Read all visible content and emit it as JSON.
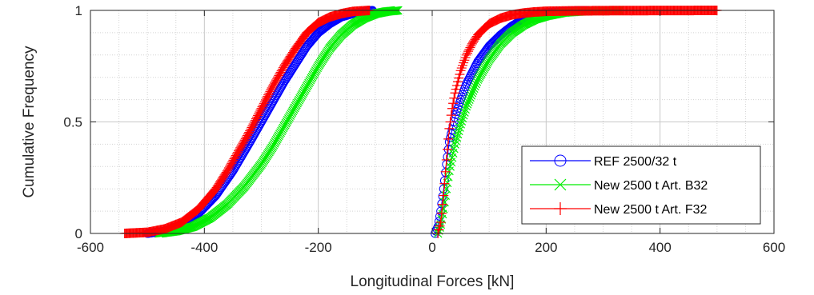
{
  "chart_data": {
    "type": "line",
    "title": "",
    "xlabel": "Longitudinal Forces [kN]",
    "ylabel": "Cumulative Frequency",
    "xlim": [
      -600,
      600
    ],
    "ylim": [
      0,
      1
    ],
    "xticks": [
      -600,
      -400,
      -200,
      0,
      200,
      400,
      600
    ],
    "yticks": [
      0,
      0.5,
      1
    ],
    "x_tick_labels": [
      "-600",
      "-400",
      "-200",
      "0",
      "200",
      "400",
      "600"
    ],
    "y_tick_labels": [
      "0",
      "0.5",
      "1"
    ],
    "grid": true,
    "minor_grid": true,
    "legend_position": "bottom-right",
    "series": [
      {
        "name": "REF 2500/32 t",
        "color": "#0000ff",
        "marker": "circle",
        "segments": [
          {
            "x": [
              -500,
              -470,
              -440,
              -410,
              -380,
              -350,
              -320,
              -300,
              -280,
              -260,
              -240,
              -220,
              -200,
              -180,
              -160,
              -140,
              -120,
              -105
            ],
            "y": [
              0.0,
              0.01,
              0.04,
              0.09,
              0.17,
              0.28,
              0.41,
              0.5,
              0.59,
              0.68,
              0.76,
              0.84,
              0.9,
              0.94,
              0.97,
              0.985,
              0.995,
              1.0
            ]
          },
          {
            "x": [
              5,
              10,
              15,
              20,
              25,
              30,
              40,
              50,
              60,
              70,
              80,
              100,
              120,
              140,
              160,
              180,
              200,
              230,
              270
            ],
            "y": [
              0.0,
              0.03,
              0.1,
              0.2,
              0.31,
              0.41,
              0.52,
              0.6,
              0.67,
              0.72,
              0.77,
              0.84,
              0.89,
              0.93,
              0.96,
              0.975,
              0.99,
              0.995,
              1.0
            ]
          }
        ]
      },
      {
        "name": "New 2500 t Art. B32",
        "color": "#00ee00",
        "marker": "x",
        "segments": [
          {
            "x": [
              -480,
              -450,
              -420,
              -390,
              -360,
              -330,
              -300,
              -280,
              -260,
              -240,
              -220,
              -200,
              -180,
              -160,
              -140,
              -120,
              -100,
              -80,
              -60
            ],
            "y": [
              0.0,
              0.01,
              0.03,
              0.07,
              0.13,
              0.21,
              0.31,
              0.39,
              0.48,
              0.57,
              0.66,
              0.75,
              0.83,
              0.89,
              0.935,
              0.965,
              0.985,
              0.995,
              1.0
            ]
          },
          {
            "x": [
              10,
              15,
              20,
              25,
              30,
              40,
              50,
              60,
              70,
              80,
              100,
              120,
              140,
              160,
              180,
              200,
              230,
              260,
              290,
              330
            ],
            "y": [
              0.0,
              0.04,
              0.11,
              0.2,
              0.28,
              0.4,
              0.49,
              0.57,
              0.63,
              0.69,
              0.78,
              0.85,
              0.9,
              0.935,
              0.96,
              0.975,
              0.99,
              0.995,
              0.998,
              1.0
            ]
          }
        ]
      },
      {
        "name": "New 2500 t Art. F32",
        "color": "#ff0000",
        "marker": "plus",
        "segments": [
          {
            "x": [
              -540,
              -500,
              -470,
              -440,
              -410,
              -380,
              -360,
              -340,
              -320,
              -300,
              -280,
              -260,
              -240,
              -220,
              -200,
              -180,
              -160,
              -140,
              -110
            ],
            "y": [
              0.0,
              0.005,
              0.02,
              0.05,
              0.11,
              0.2,
              0.28,
              0.37,
              0.46,
              0.56,
              0.66,
              0.75,
              0.83,
              0.9,
              0.945,
              0.97,
              0.985,
              0.995,
              1.0
            ]
          },
          {
            "x": [
              10,
              15,
              20,
              25,
              30,
              35,
              40,
              50,
              60,
              70,
              80,
              100,
              120,
              140,
              160,
              180,
              200,
              250,
              320,
              500
            ],
            "y": [
              0.0,
              0.05,
              0.17,
              0.33,
              0.47,
              0.56,
              0.63,
              0.73,
              0.8,
              0.85,
              0.89,
              0.94,
              0.965,
              0.98,
              0.988,
              0.993,
              0.996,
              0.998,
              0.999,
              1.0
            ]
          }
        ]
      }
    ]
  }
}
